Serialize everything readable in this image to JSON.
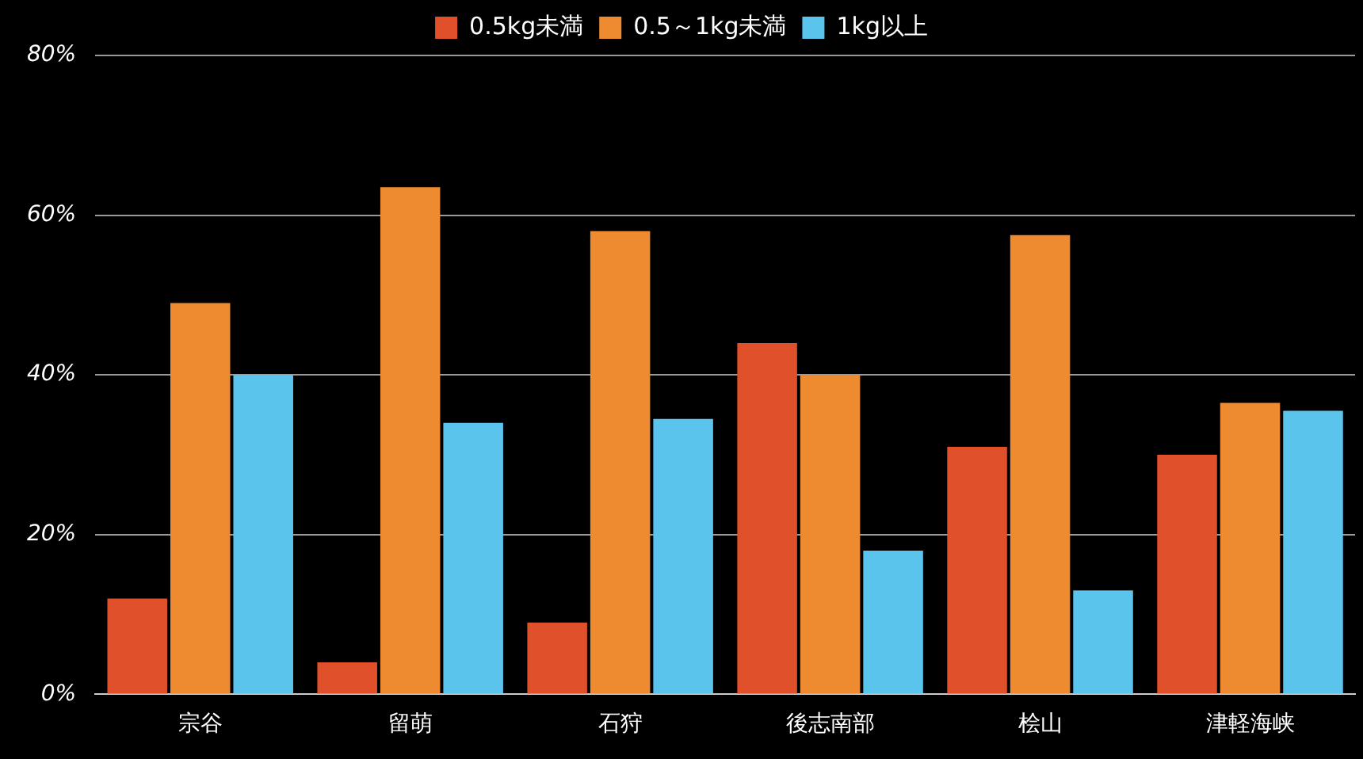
{
  "chart_data": {
    "type": "bar",
    "categories": [
      "宗谷",
      "留萌",
      "石狩",
      "後志南部",
      "桧山",
      "津軽海峡"
    ],
    "series": [
      {
        "name": "0.5kg未満",
        "color": "#e0502a",
        "values": [
          12,
          4,
          9,
          44,
          31,
          30
        ]
      },
      {
        "name": "0.5～1kg未満",
        "color": "#ee8a2f",
        "values": [
          49,
          63.5,
          58,
          40,
          57.5,
          36.5
        ]
      },
      {
        "name": "1kg以上",
        "color": "#5bc4ec",
        "values": [
          40,
          34,
          34.5,
          18,
          13,
          35.5
        ]
      }
    ],
    "ylim": [
      0,
      80
    ],
    "yticks": [
      {
        "value": 0,
        "label": "0%"
      },
      {
        "value": 20,
        "label": "20%"
      },
      {
        "value": 40,
        "label": "40%"
      },
      {
        "value": 60,
        "label": "60%"
      },
      {
        "value": 80,
        "label": "80%"
      }
    ],
    "grid": "y",
    "legend": "top"
  }
}
